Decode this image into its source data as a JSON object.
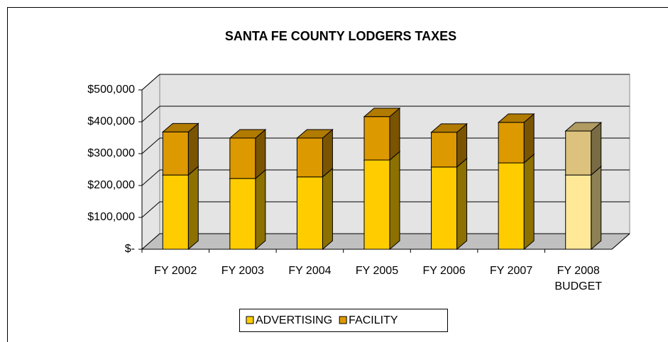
{
  "chart_data": {
    "type": "bar3d_stacked",
    "title": "SANTA FE COUNTY LODGERS TAXES",
    "categories": [
      "FY 2002",
      "FY 2003",
      "FY 2004",
      "FY 2005",
      "FY 2006",
      "FY 2007",
      "FY 2008\nBUDGET"
    ],
    "series": [
      {
        "name": "ADVERTISING",
        "color": "#ffcc00",
        "colors": [
          "#ffcc00",
          "#ffcc00",
          "#ffcc00",
          "#ffcc00",
          "#ffcc00",
          "#ffcc00",
          "#ffe999"
        ],
        "values": [
          233000,
          222000,
          227000,
          280000,
          258000,
          271000,
          233000
        ]
      },
      {
        "name": "FACILITY",
        "color": "#dd9900",
        "colors": [
          "#dd9900",
          "#dd9900",
          "#dd9900",
          "#dd9900",
          "#dd9900",
          "#dd9900",
          "#dcc27c"
        ],
        "values": [
          135000,
          127000,
          122000,
          136000,
          109000,
          127000,
          138000
        ]
      }
    ],
    "ylim": [
      0,
      500000
    ],
    "yticks": [
      {
        "value": 0,
        "label": "$-"
      },
      {
        "value": 100000,
        "label": "$100,000"
      },
      {
        "value": 200000,
        "label": "$200,000"
      },
      {
        "value": 300000,
        "label": "$300,000"
      },
      {
        "value": 400000,
        "label": "$400,000"
      },
      {
        "value": 500000,
        "label": "$500,000"
      }
    ],
    "grid": true,
    "legend": "bottom"
  }
}
